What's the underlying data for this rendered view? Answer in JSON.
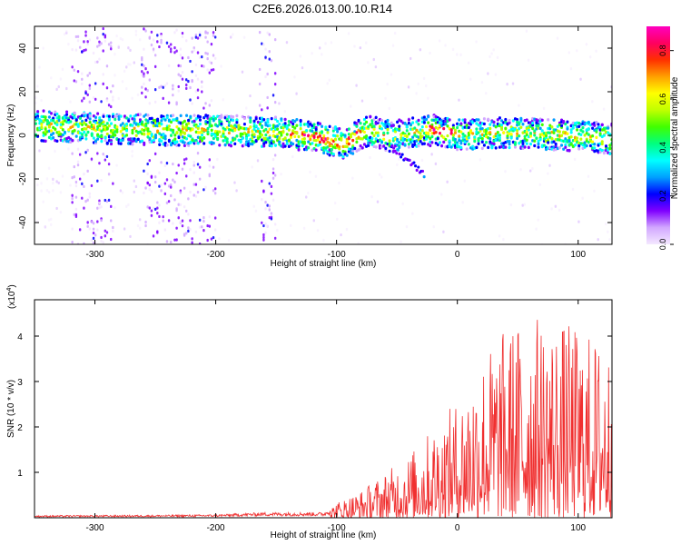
{
  "title": "C2E6.2026.013.00.10.R14",
  "chart_data": [
    {
      "type": "heatmap",
      "xlabel": "Height of straight line (km)",
      "ylabel": "Frequency (Hz)",
      "xlim": [
        -350,
        128
      ],
      "ylim": [
        -50,
        50
      ],
      "x_ticks": [
        -300,
        -200,
        -100,
        0,
        100
      ],
      "y_ticks": [
        -40,
        -20,
        0,
        20,
        40
      ],
      "colorbar": {
        "label": "Normalized spectral amplitude",
        "range": [
          0,
          0.9
        ],
        "ticks": [
          "0.0",
          "0.2",
          "0.4",
          "0.6",
          "0.8"
        ],
        "colors": [
          "#f4e8ff",
          "#d2a8ff",
          "#8000ff",
          "#0000ff",
          "#00a0ff",
          "#00ffff",
          "#00ff80",
          "#40ff00",
          "#c0ff00",
          "#ffff00",
          "#ffa000",
          "#ff3000",
          "#ff0060",
          "#ff00c0"
        ]
      },
      "band_center": [
        {
          "x": -345,
          "y": 5
        },
        {
          "x": -300,
          "y": 4
        },
        {
          "x": -250,
          "y": 3
        },
        {
          "x": -200,
          "y": 3
        },
        {
          "x": -150,
          "y": 2
        },
        {
          "x": -120,
          "y": 0
        },
        {
          "x": -95,
          "y": -3
        },
        {
          "x": -75,
          "y": 3
        },
        {
          "x": -55,
          "y": 0
        },
        {
          "x": -40,
          "y": 2
        },
        {
          "x": -20,
          "y": 3
        },
        {
          "x": 0,
          "y": 1
        },
        {
          "x": 40,
          "y": 2
        },
        {
          "x": 80,
          "y": 1
        },
        {
          "x": 110,
          "y": 0
        },
        {
          "x": 128,
          "y": -1
        }
      ]
    },
    {
      "type": "line",
      "xlabel": "Height of straight line (km)",
      "ylabel": "SNR (10 * v/v)",
      "y_multiplier": "(x10",
      "y_multiplier_exp": "4",
      "multiplier_close": ")",
      "xlim": [
        -350,
        128
      ],
      "ylim": [
        0,
        4.8
      ],
      "x_ticks": [
        -300,
        -200,
        -100,
        0,
        100
      ],
      "y_ticks": [
        1,
        2,
        3,
        4
      ],
      "series": [
        {
          "color": "#f03030",
          "envelope": [
            {
              "x": -350,
              "y": 0.05
            },
            {
              "x": -250,
              "y": 0.06
            },
            {
              "x": -200,
              "y": 0.07
            },
            {
              "x": -160,
              "y": 0.12
            },
            {
              "x": -110,
              "y": 0.12
            },
            {
              "x": -100,
              "y": 0.35
            },
            {
              "x": -80,
              "y": 0.6
            },
            {
              "x": -60,
              "y": 1.0
            },
            {
              "x": -40,
              "y": 1.4
            },
            {
              "x": -20,
              "y": 2.0
            },
            {
              "x": 0,
              "y": 2.6
            },
            {
              "x": 20,
              "y": 3.6
            },
            {
              "x": 40,
              "y": 4.2
            },
            {
              "x": 60,
              "y": 4.5
            },
            {
              "x": 80,
              "y": 4.4
            },
            {
              "x": 100,
              "y": 4.2
            },
            {
              "x": 128,
              "y": 3.8
            }
          ]
        }
      ]
    }
  ]
}
